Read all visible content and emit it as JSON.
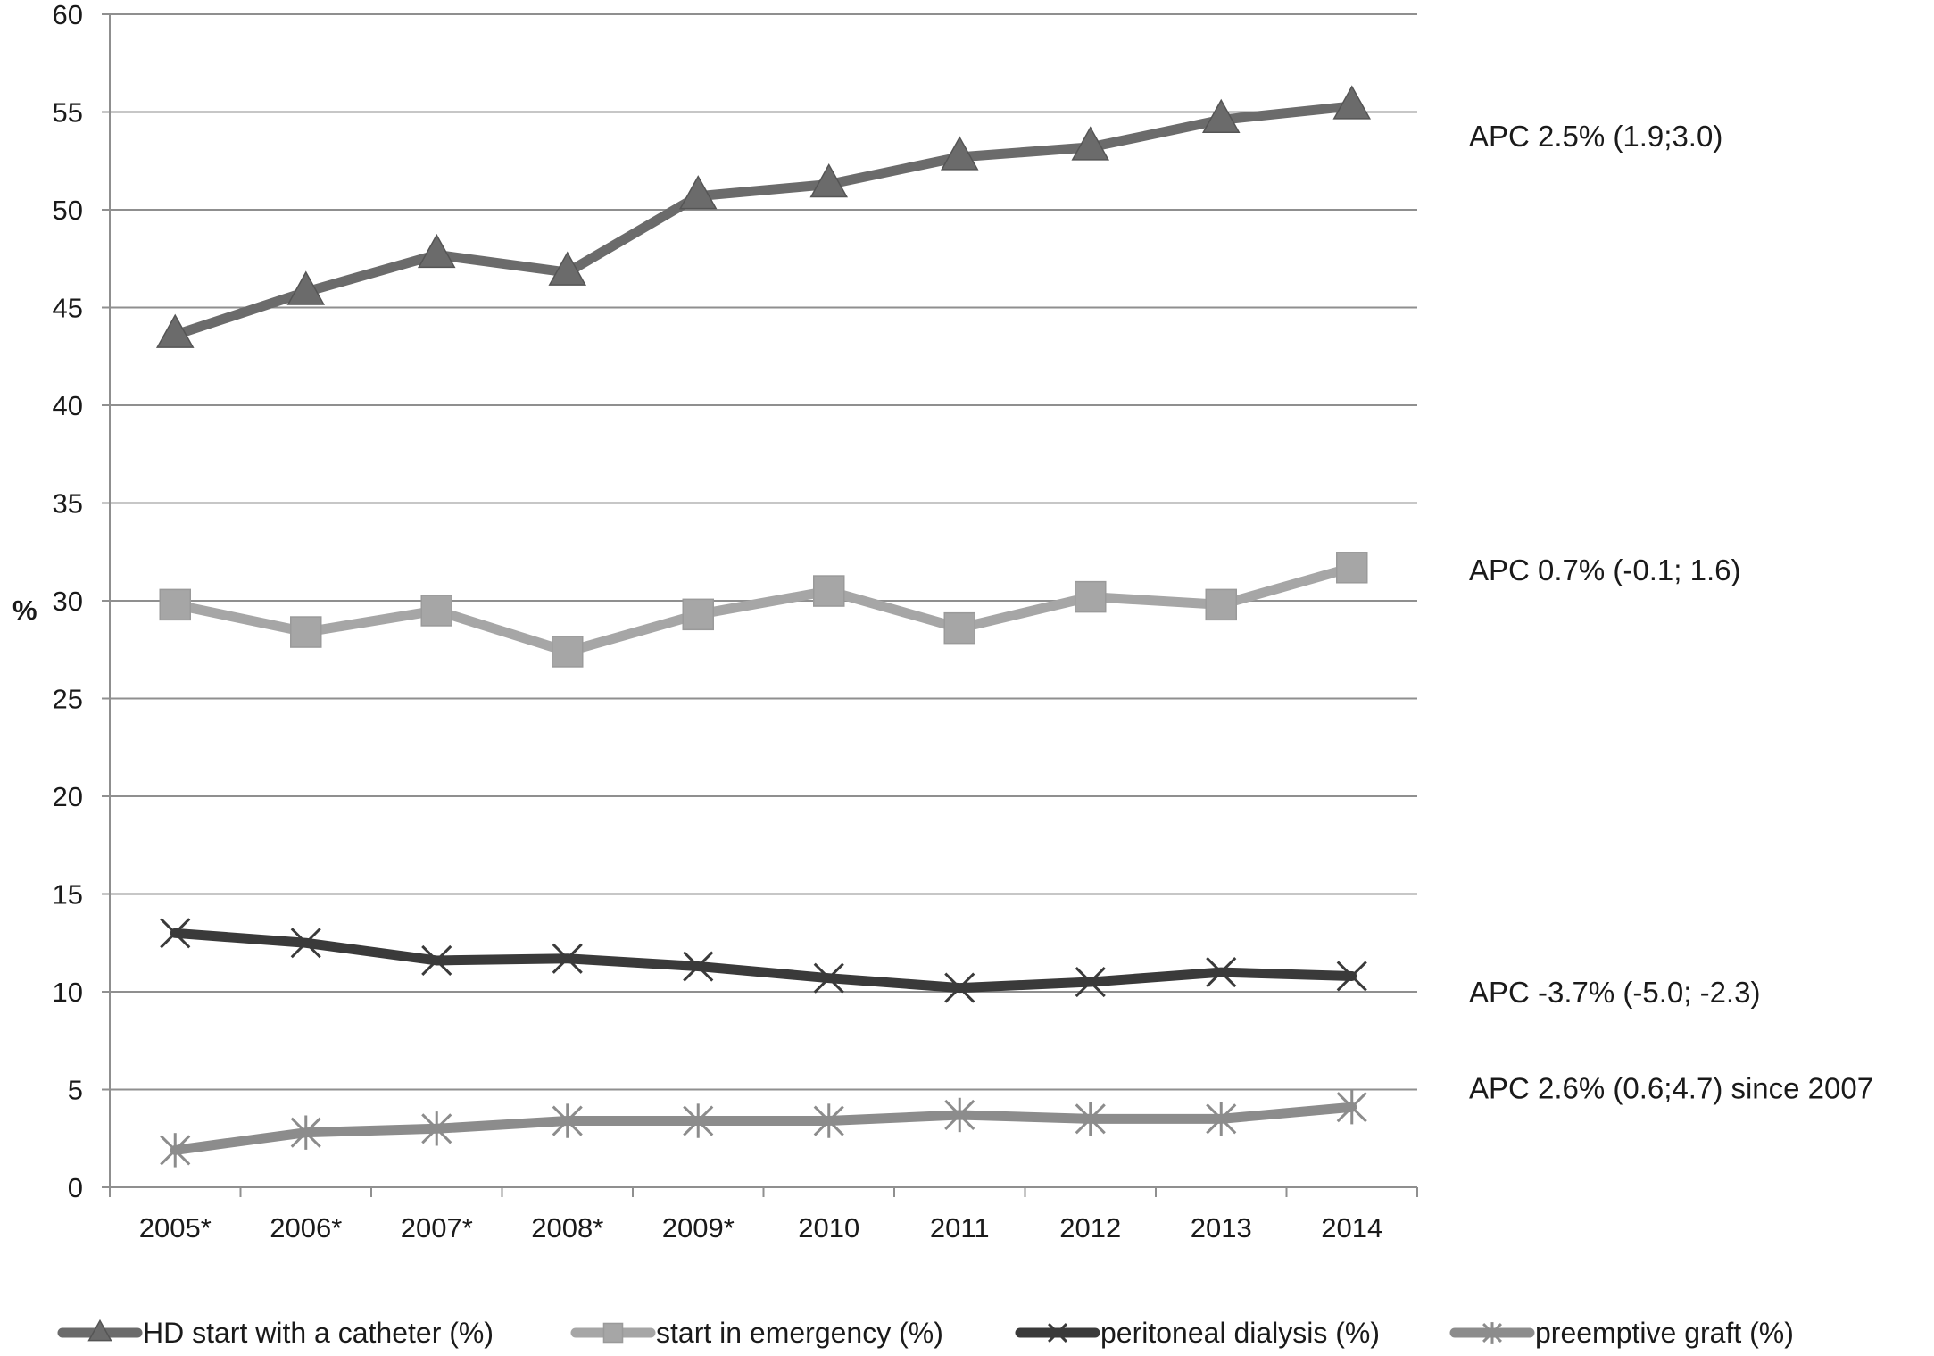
{
  "chart_data": {
    "type": "line",
    "ylabel": "%",
    "xlabel": "",
    "title": "",
    "ylim": [
      0,
      60
    ],
    "ytick_step": 5,
    "grid": "horizontal",
    "legend_position": "bottom",
    "categories": [
      "2005*",
      "2006*",
      "2007*",
      "2008*",
      "2009*",
      "2010",
      "2011",
      "2012",
      "2013",
      "2014"
    ],
    "series": [
      {
        "name": "HD start with a catheter (%)",
        "marker": "triangle",
        "color": "#6b6b6b",
        "values": [
          43.6,
          45.8,
          47.7,
          46.8,
          50.7,
          51.3,
          52.7,
          53.2,
          54.6,
          55.3
        ]
      },
      {
        "name": "start in emergency (%)",
        "marker": "square",
        "color": "#a6a6a6",
        "values": [
          29.8,
          28.4,
          29.5,
          27.4,
          29.3,
          30.5,
          28.6,
          30.2,
          29.8,
          31.7
        ]
      },
      {
        "name": "peritoneal dialysis (%)",
        "marker": "x",
        "color": "#3a3a3a",
        "values": [
          13.0,
          12.5,
          11.6,
          11.7,
          11.3,
          10.7,
          10.2,
          10.5,
          11.0,
          10.8
        ]
      },
      {
        "name": "preemptive graft (%)",
        "marker": "asterisk",
        "color": "#8c8c8c",
        "values": [
          1.9,
          2.8,
          3.0,
          3.4,
          3.4,
          3.4,
          3.7,
          3.5,
          3.5,
          4.1
        ]
      }
    ],
    "annotations": [
      {
        "series": 0,
        "text": "APC 2.5% (1.9;3.0)",
        "y": 53.8
      },
      {
        "series": 1,
        "text": "APC 0.7% (-0.1; 1.6)",
        "y": 31.6
      },
      {
        "series": 2,
        "text": "APC -3.7% (-5.0; -2.3)",
        "y": 10.0
      },
      {
        "series": 3,
        "text": "APC 2.6% (0.6;4.7) since 2007",
        "y": 5.1
      }
    ]
  }
}
